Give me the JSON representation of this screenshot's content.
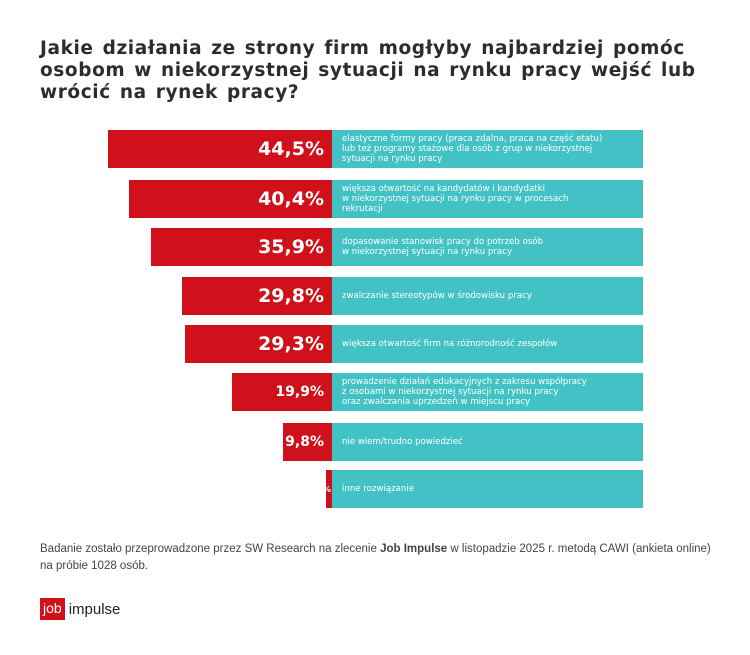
{
  "chart_data": {
    "type": "bar",
    "orientation": "horizontal",
    "title": "Jakie działania ze strony firm mogłyby najbardziej pomóc osobom w niekorzystnej sytuacji na rynku pracy wejść lub wrócić na rynek pracy?",
    "categories": [
      "elastyczne formy pracy (praca zdalna, praca na część etatu)\nlub też programy stażowe dla osób z grup w niekorzystnej\nsytuacji na rynku pracy",
      "większa otwartość na kandydatów i kandydatki\nw niekorzystnej sytuacji na rynku pracy w procesach\nrekrutacji",
      "dopasowanie stanowisk pracy do potrzeb osób\nw niekorzystnej sytuacji na rynku pracy",
      "zwalczanie stereotypów w środowisku pracy",
      "większa otwartość firm na różnorodność zespołów",
      "prowadzenie działań edukacyjnych z zakresu współpracy\nz osobami w niekorzystnej sytuacji na rynku pracy\noraz zwalczania uprzedzeń w miejscu pracy",
      "nie wiem/trudno powiedzieć",
      "inne rozwiązanie"
    ],
    "values": [
      44.5,
      40.4,
      35.9,
      29.8,
      29.3,
      19.9,
      9.8,
      1.2
    ],
    "labels": [
      "44,5%",
      "40,4%",
      "35,9%",
      "29,8%",
      "29,3%",
      "19,9%",
      "9,8%",
      "1,2%"
    ],
    "unit": "%",
    "colors": {
      "bar": "#d0111b",
      "label_bg": "#43c2c5"
    }
  },
  "footnote": {
    "pre": "Badanie zostało przeprowadzone przez SW Research na zlecenie ",
    "bold": "Job Impulse",
    "post": " w listopadzie 2025 r. metodą CAWI (ankieta online) na próbie 1028 osób."
  },
  "logo": {
    "box": "job",
    "text": "impulse"
  }
}
